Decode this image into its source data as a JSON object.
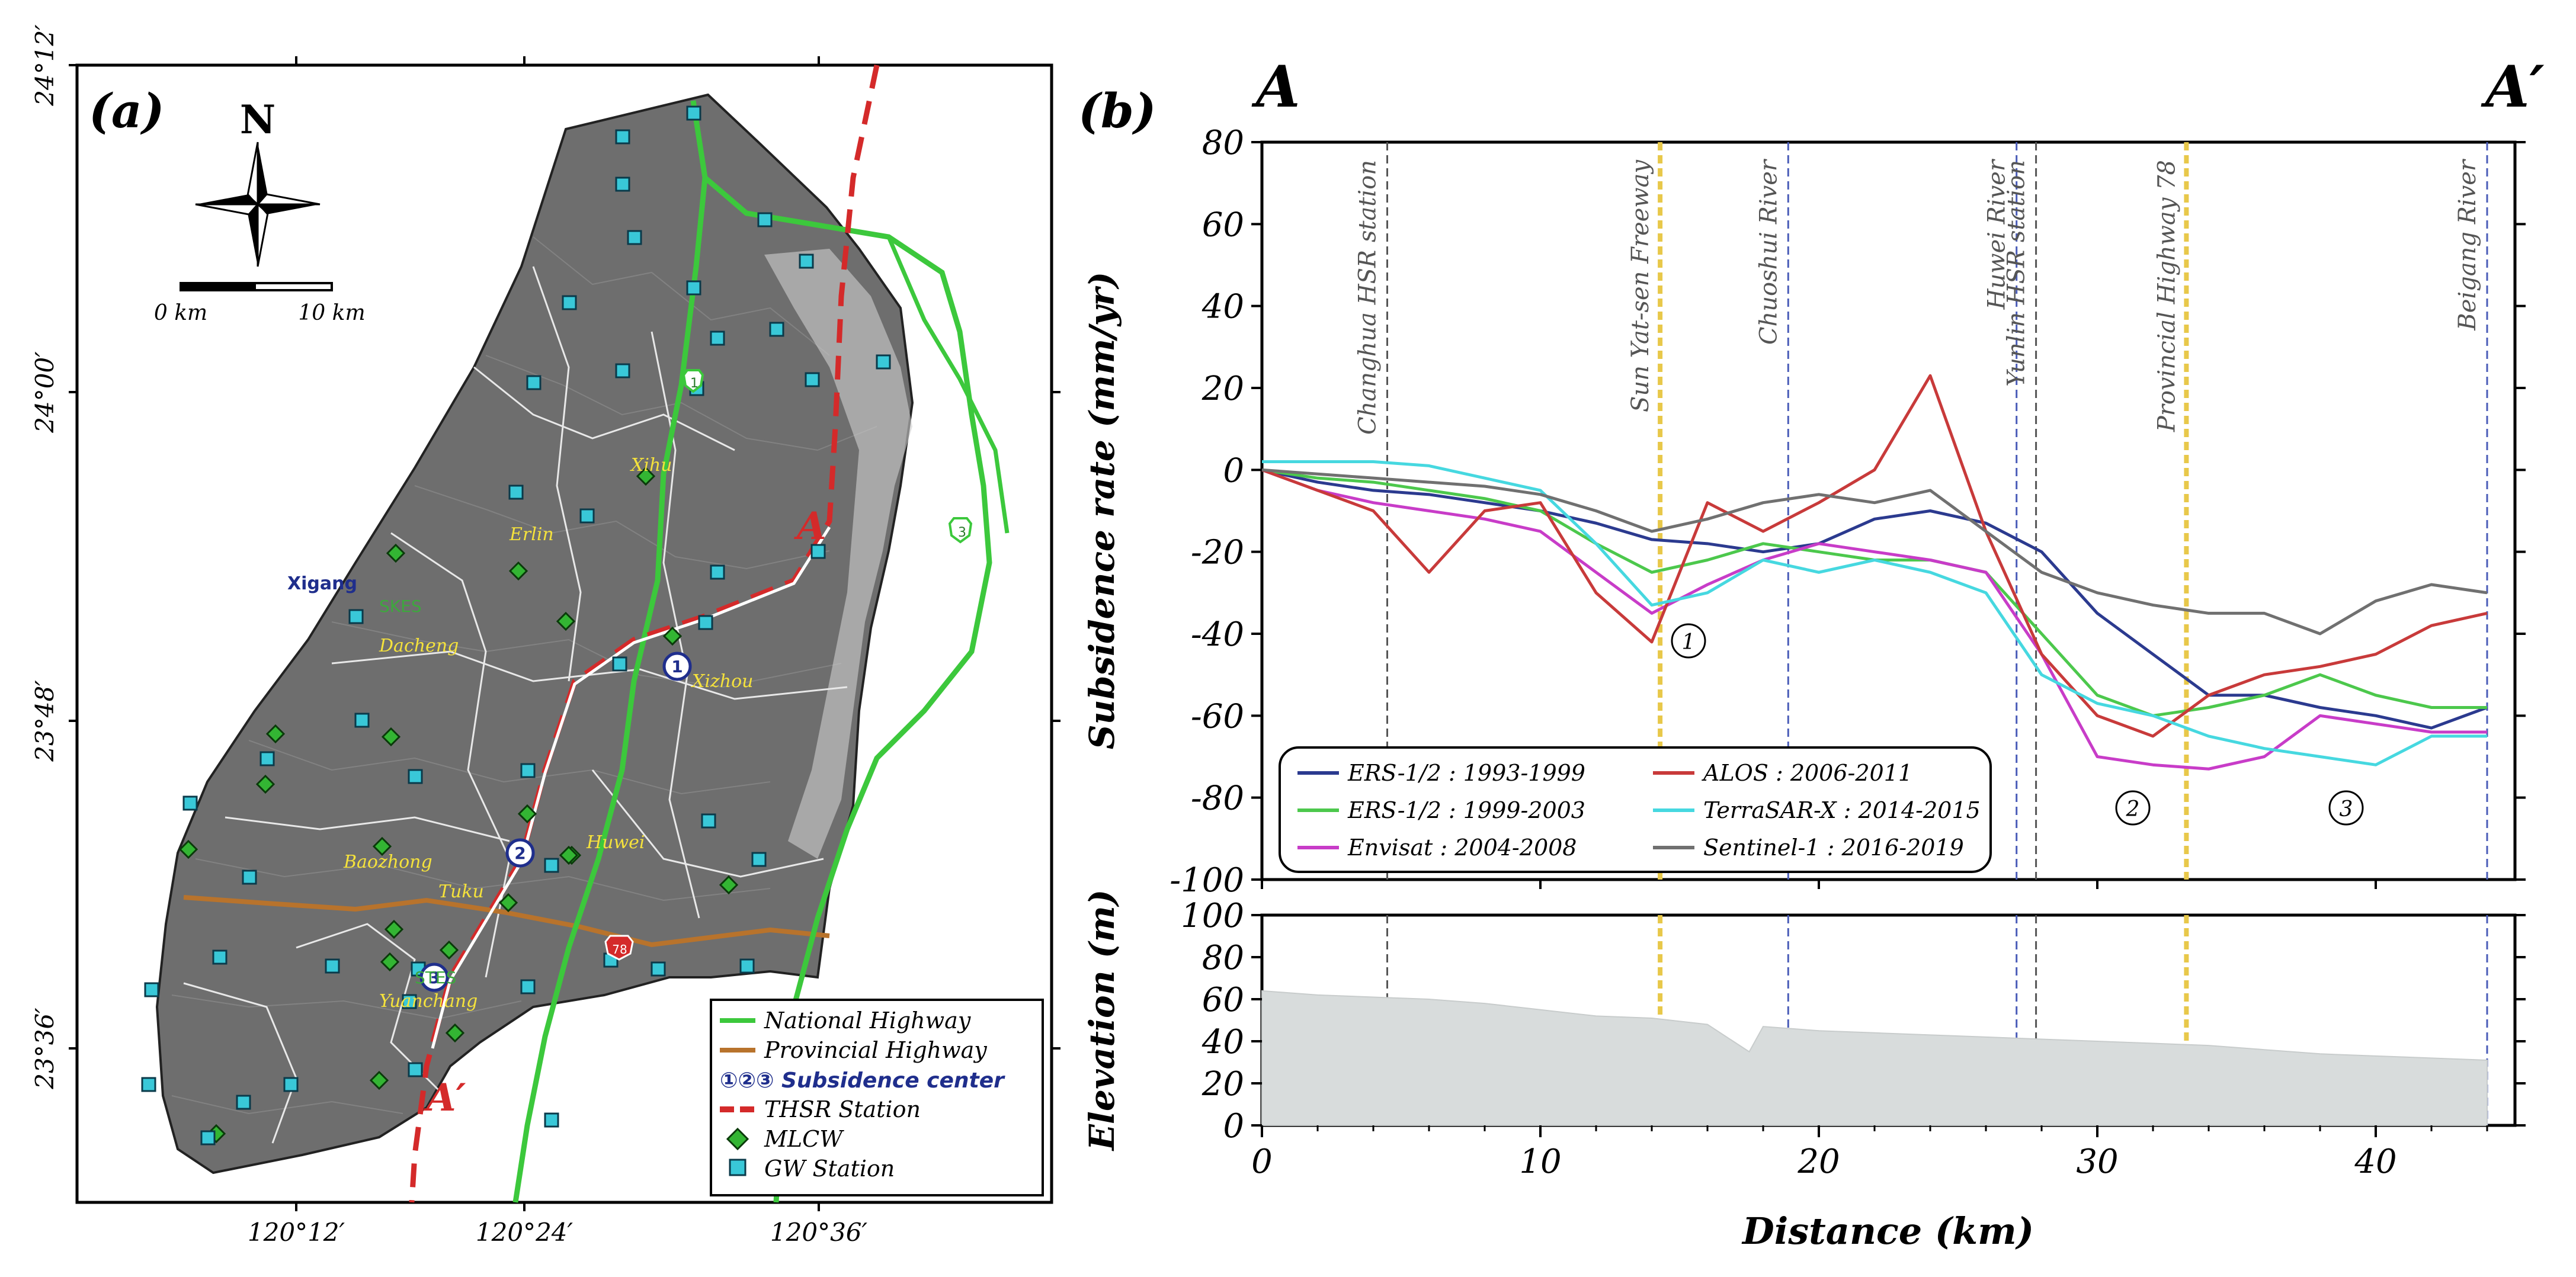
{
  "figure": {
    "panel_a_label": "(a)",
    "panel_b_label": "(b)"
  },
  "map": {
    "north_label": "N",
    "scale": {
      "start": "0 km",
      "end": "10 km"
    },
    "lat_labels": [
      "24°12′",
      "24°00′",
      "23°48′",
      "23°36′"
    ],
    "lon_labels": [
      "120°12′",
      "120°24′",
      "120°36′"
    ],
    "places": [
      "Xihu",
      "Erlin",
      "Xigang",
      "Dacheng",
      "Xizhou",
      "Baozhong",
      "Huwei",
      "Tuku",
      "Yuanchang"
    ],
    "stations": [
      "SKES",
      "STES"
    ],
    "section_start": "A",
    "section_end": "A′",
    "highway_shields": [
      "1",
      "3",
      "78"
    ],
    "subsidence_markers": [
      "1",
      "2",
      "3"
    ],
    "legend": [
      {
        "label": "National Highway",
        "color": "#3cc83c"
      },
      {
        "label": "Provincial Highway",
        "color": "#b8732c"
      },
      {
        "label": "①②③ Subsidence center",
        "color": "#1f2e8c"
      },
      {
        "label": "THSR Station",
        "color": "#d42a2a"
      },
      {
        "label": "MLCW",
        "color": "#33b533"
      },
      {
        "label": "GW Station",
        "color": "#39c8d8"
      }
    ],
    "colors": {
      "terrain": "#6e6e6e",
      "national_highway": "#3cc83c",
      "provincial_highway": "#b8732c",
      "thsr": "#d42a2a",
      "mlcw": "#33b533",
      "gw": "#39c8d8",
      "place_label": "#f5e23c",
      "station_label": "#3da83d",
      "xigang_label": "#1f2e8c"
    }
  },
  "profile": {
    "end_a": "A",
    "end_b": "A′",
    "markers": [
      "①",
      "②",
      "③"
    ],
    "features": [
      {
        "label": "Changhua HSR station",
        "km": 4.5,
        "color": "#555555"
      },
      {
        "label": "Sun Yat-sen Freeway",
        "km": 14.3,
        "color": "#e8c84a"
      },
      {
        "label": "Chuoshui River",
        "km": 18.9,
        "color": "#4a5cb8"
      },
      {
        "label": "Huwei River",
        "km": 27.1,
        "color": "#4a5cb8"
      },
      {
        "label": "Yunlin HSR station",
        "km": 27.8,
        "color": "#555555"
      },
      {
        "label": "Provincial Highway 78",
        "km": 33.2,
        "color": "#e8c84a"
      },
      {
        "label": "Beigang River",
        "km": 44.0,
        "color": "#4a5cb8"
      }
    ]
  },
  "chart_data": [
    {
      "type": "line",
      "title": "",
      "xlabel": "",
      "ylabel": "Subsidence rate (mm/yr)",
      "xlim": [
        0,
        45
      ],
      "ylim": [
        -100,
        80
      ],
      "yticks": [
        80,
        60,
        40,
        20,
        0,
        -20,
        -40,
        -60,
        -80,
        -100
      ],
      "legend_position": "bottom-left",
      "x": [
        0,
        2,
        4,
        6,
        8,
        10,
        12,
        14,
        16,
        18,
        20,
        22,
        24,
        26,
        28,
        30,
        32,
        34,
        36,
        38,
        40,
        42,
        44
      ],
      "series": [
        {
          "name": "ERS-1/2 : 1993-1999",
          "color": "#2b3a8f",
          "values": [
            0,
            -3,
            -5,
            -6,
            -8,
            -10,
            -13,
            -17,
            -18,
            -20,
            -18,
            -12,
            -10,
            -13,
            -20,
            -35,
            -45,
            -55,
            -55,
            -58,
            -60,
            -63,
            -58
          ]
        },
        {
          "name": "ERS-1/2 : 1999-2003",
          "color": "#4cc84c",
          "values": [
            0,
            -2,
            -3,
            -5,
            -7,
            -10,
            -18,
            -25,
            -22,
            -18,
            -20,
            -22,
            -22,
            -25,
            -40,
            -55,
            -60,
            -58,
            -55,
            -50,
            -55,
            -58,
            -58
          ]
        },
        {
          "name": "Envisat : 2004-2008",
          "color": "#c83cc8",
          "values": [
            0,
            -5,
            -8,
            -10,
            -12,
            -15,
            -25,
            -35,
            -28,
            -22,
            -18,
            -20,
            -22,
            -25,
            -45,
            -70,
            -72,
            -73,
            -70,
            -60,
            -62,
            -64,
            -64
          ]
        },
        {
          "name": "ALOS : 2006-2011",
          "color": "#c83a3a",
          "values": [
            0,
            -5,
            -10,
            -25,
            -10,
            -8,
            -30,
            -42,
            -8,
            -15,
            -8,
            0,
            23,
            -15,
            -45,
            -60,
            -65,
            -55,
            -50,
            -48,
            -45,
            -38,
            -35
          ]
        },
        {
          "name": "TerraSAR-X : 2014-2015",
          "color": "#46d8e0",
          "values": [
            2,
            2,
            2,
            1,
            -2,
            -5,
            -18,
            -33,
            -30,
            -22,
            -25,
            -22,
            -25,
            -30,
            -50,
            -57,
            -60,
            -65,
            -68,
            -70,
            -72,
            -65,
            -65
          ]
        },
        {
          "name": "Sentinel-1 : 2016-2019",
          "color": "#707070",
          "values": [
            0,
            -1,
            -2,
            -3,
            -4,
            -6,
            -10,
            -15,
            -12,
            -8,
            -6,
            -8,
            -5,
            -15,
            -25,
            -30,
            -33,
            -35,
            -35,
            -40,
            -32,
            -28,
            -30
          ]
        }
      ]
    },
    {
      "type": "area",
      "xlabel": "Distance (km)",
      "ylabel": "Elevation (m)",
      "xlim": [
        0,
        45
      ],
      "ylim": [
        0,
        100
      ],
      "yticks": [
        100,
        80,
        60,
        40,
        20,
        0
      ],
      "xticks": [
        0,
        10,
        20,
        30,
        40
      ],
      "x": [
        0,
        2,
        4,
        6,
        8,
        10,
        12,
        14,
        16,
        17.5,
        18,
        20,
        22,
        24,
        26,
        28,
        30,
        32,
        34,
        36,
        38,
        40,
        42,
        44
      ],
      "values": [
        64,
        62,
        61,
        60,
        58,
        55,
        52,
        51,
        48,
        35,
        47,
        45,
        44,
        43,
        42,
        41,
        40,
        39,
        38,
        36,
        34,
        33,
        32,
        31
      ],
      "color": "#d8dcdc"
    }
  ]
}
